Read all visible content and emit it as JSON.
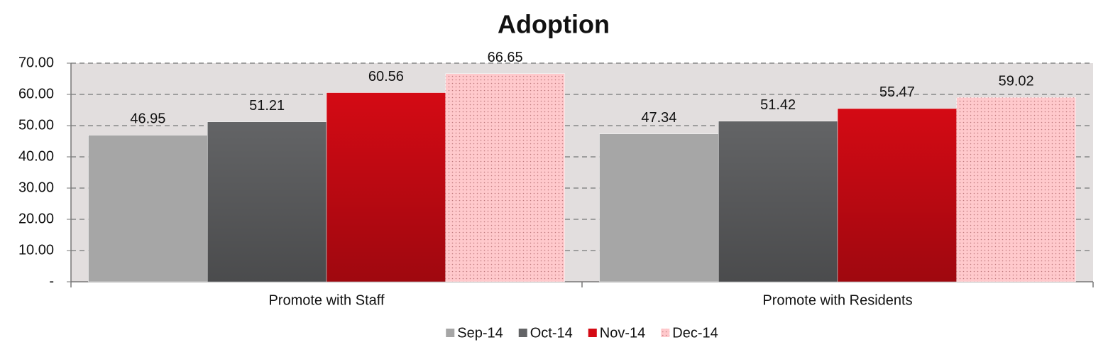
{
  "chart_data": {
    "type": "bar",
    "title": "Adoption",
    "categories": [
      "Promote with Staff",
      "Promote with Residents"
    ],
    "series": [
      {
        "name": "Sep-14",
        "color": "#a6a6a6",
        "values": [
          46.95,
          47.34
        ]
      },
      {
        "name": "Oct-14",
        "color": "#636466",
        "values": [
          51.21,
          51.42
        ]
      },
      {
        "name": "Nov-14",
        "color": "#d40a14",
        "values": [
          60.56,
          55.47
        ]
      },
      {
        "name": "Dec-14",
        "color": "#ffc9cc",
        "pattern": "dotted",
        "values": [
          66.65,
          59.02
        ]
      }
    ],
    "ylim": [
      0,
      70
    ],
    "yticks": [
      {
        "value": 0,
        "label": "-"
      },
      {
        "value": 10,
        "label": "10.00"
      },
      {
        "value": 20,
        "label": "20.00"
      },
      {
        "value": 30,
        "label": "30.00"
      },
      {
        "value": 40,
        "label": "40.00"
      },
      {
        "value": 50,
        "label": "50.00"
      },
      {
        "value": 60,
        "label": "60.00"
      },
      {
        "value": 70,
        "label": "70.00"
      }
    ],
    "grid": true,
    "legend": "bottom"
  }
}
